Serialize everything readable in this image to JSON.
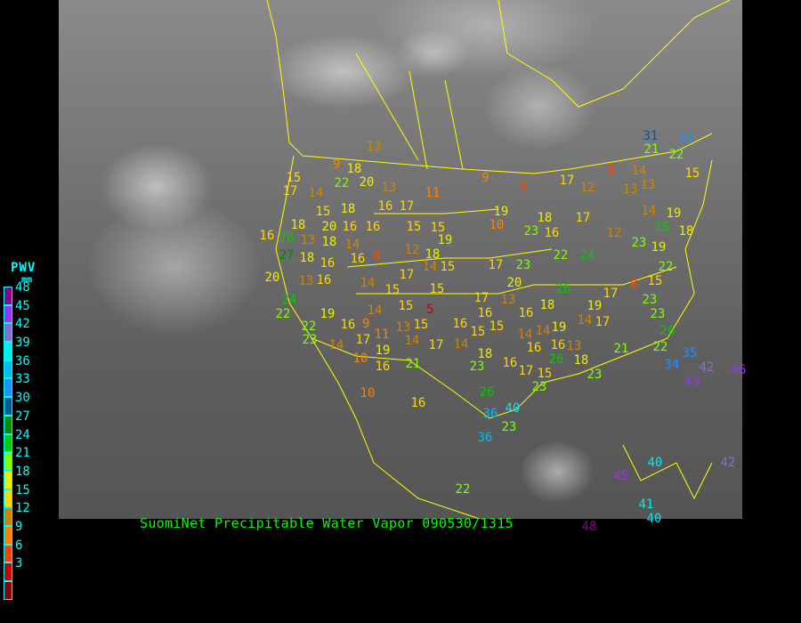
{
  "caption": "SuomiNet Precipitable Water Vapor 090530/1315",
  "legend": {
    "title": "PWV",
    "unit": "mm",
    "bins": [
      {
        "label": "48",
        "color": "#8b008b"
      },
      {
        "label": "45",
        "color": "#9b30ff"
      },
      {
        "label": "42",
        "color": "#8470d0"
      },
      {
        "label": "39",
        "color": "#00eeee"
      },
      {
        "label": "36",
        "color": "#00bfee"
      },
      {
        "label": "33",
        "color": "#1e90ff"
      },
      {
        "label": "30",
        "color": "#005a96"
      },
      {
        "label": "27",
        "color": "#008b00"
      },
      {
        "label": "24",
        "color": "#00cd00"
      },
      {
        "label": "21",
        "color": "#7fff00"
      },
      {
        "label": "18",
        "color": "#eeee00"
      },
      {
        "label": "15",
        "color": "#ffd700"
      },
      {
        "label": "12",
        "color": "#cd8500"
      },
      {
        "label": "9",
        "color": "#ff8000"
      },
      {
        "label": "6",
        "color": "#ff4500"
      },
      {
        "label": "3",
        "color": "#cd0000"
      },
      {
        "label": "",
        "color": "#8b0000"
      }
    ]
  },
  "map": {
    "border_color": "#ffff00",
    "station_values": [
      "13",
      "9",
      "18",
      "22",
      "20",
      "13",
      "15",
      "17",
      "14",
      "11",
      "9",
      "6",
      "8",
      "14",
      "21",
      "22",
      "15",
      "13",
      "13",
      "17",
      "12",
      "15",
      "18",
      "16",
      "17",
      "16",
      "26",
      "18",
      "20",
      "16",
      "16",
      "15",
      "15",
      "19",
      "10",
      "19",
      "23",
      "16",
      "18",
      "17",
      "12",
      "23",
      "14",
      "19",
      "18",
      "13",
      "18",
      "14",
      "16",
      "8",
      "12",
      "18",
      "27",
      "18",
      "16",
      "14",
      "15",
      "23",
      "22",
      "24",
      "19",
      "22",
      "20",
      "13",
      "16",
      "14",
      "17",
      "15",
      "15",
      "17",
      "20",
      "13",
      "17",
      "24",
      "22",
      "19",
      "14",
      "15",
      "5",
      "16",
      "16",
      "18",
      "26",
      "19",
      "14",
      "17",
      "17",
      "8",
      "15",
      "23",
      "23",
      "22",
      "23",
      "16",
      "9",
      "13",
      "15",
      "16",
      "15",
      "15",
      "14",
      "16",
      "19",
      "14",
      "17",
      "11",
      "14",
      "17",
      "14",
      "14",
      "18",
      "19",
      "16",
      "13",
      "26",
      "10",
      "16",
      "21",
      "23",
      "16",
      "17",
      "15",
      "18",
      "23",
      "21",
      "22",
      "26",
      "35",
      "34",
      "42",
      "45",
      "46",
      "10",
      "16",
      "26",
      "36",
      "40",
      "23",
      "36",
      "23",
      "22",
      "45",
      "40",
      "42",
      "41",
      "40",
      "48",
      "31",
      "33",
      "25"
    ]
  }
}
